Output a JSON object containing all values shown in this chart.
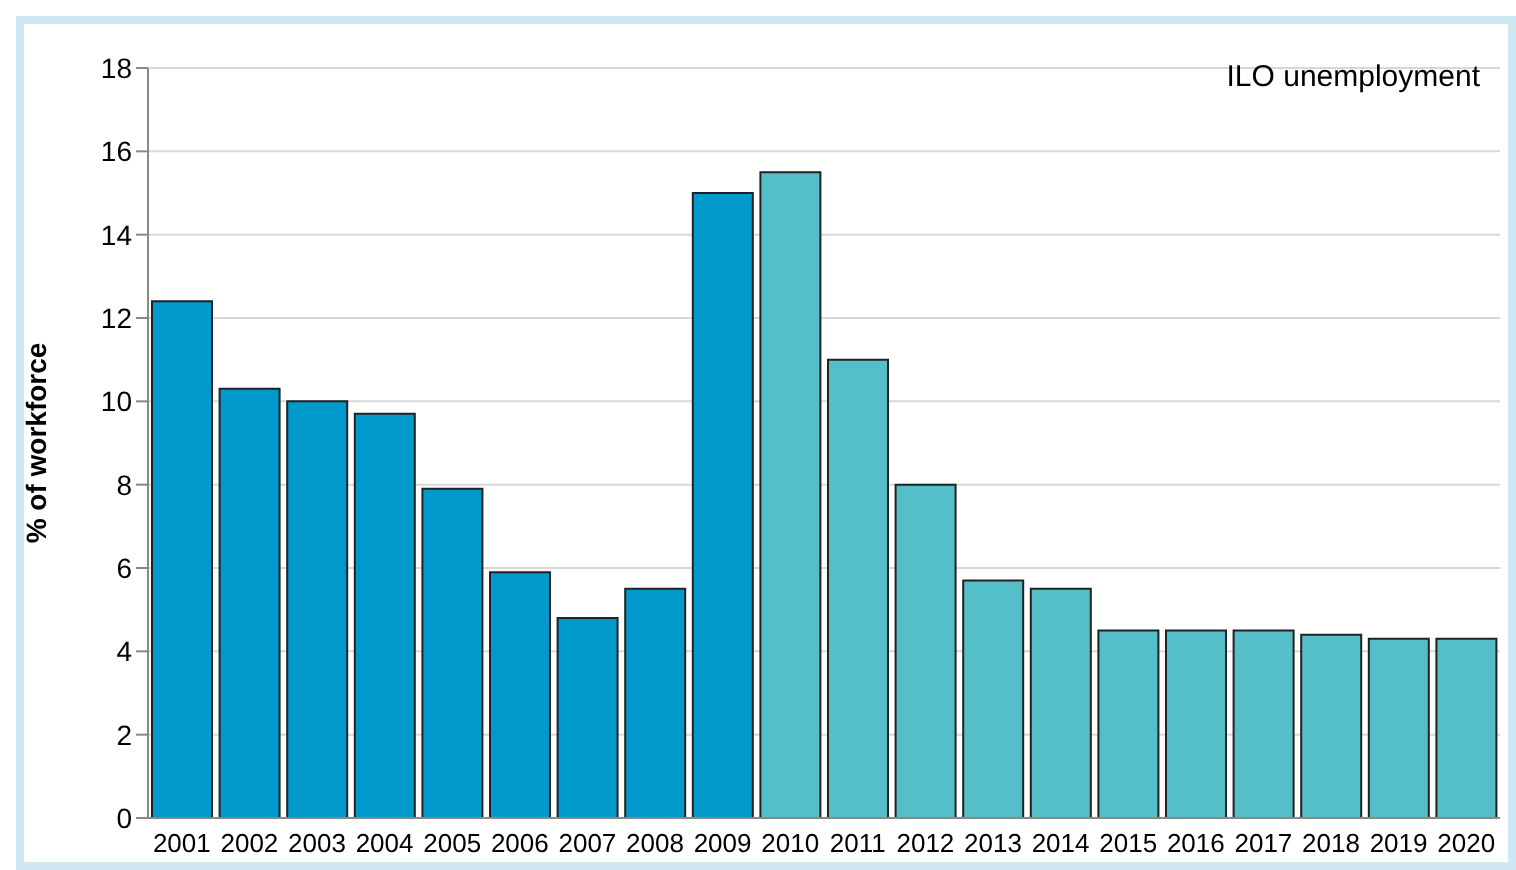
{
  "chart_data": {
    "type": "bar",
    "ylabel": "% of workforce",
    "annotations": [
      "ILO unemployment"
    ],
    "categories": [
      "2001",
      "2002",
      "2003",
      "2004",
      "2005",
      "2006",
      "2007",
      "2008",
      "2009",
      "2010",
      "2011",
      "2012",
      "2013",
      "2014",
      "2015",
      "2016",
      "2017",
      "2018",
      "2019",
      "2020"
    ],
    "values": [
      12.4,
      10.3,
      10.0,
      9.7,
      7.9,
      5.9,
      4.8,
      5.5,
      15.0,
      15.5,
      11.0,
      8.0,
      5.7,
      5.5,
      4.5,
      4.5,
      4.5,
      4.4,
      4.3,
      4.3
    ],
    "colors": [
      "#0099cc",
      "#0099cc",
      "#0099cc",
      "#0099cc",
      "#0099cc",
      "#0099cc",
      "#0099cc",
      "#0099cc",
      "#0099cc",
      "#55bfc9",
      "#55bfc9",
      "#55bfc9",
      "#55bfc9",
      "#55bfc9",
      "#55bfc9",
      "#55bfc9",
      "#55bfc9",
      "#55bfc9",
      "#55bfc9",
      "#55bfc9"
    ],
    "ylim": [
      0,
      18
    ],
    "yticks": [
      0,
      2,
      4,
      6,
      8,
      10,
      12,
      14,
      16,
      18
    ],
    "grid": "y"
  }
}
